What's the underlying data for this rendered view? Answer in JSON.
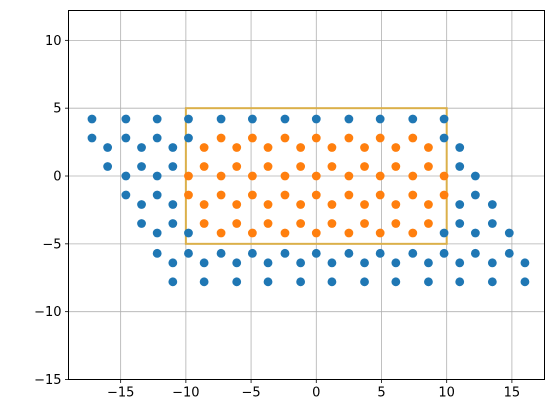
{
  "chart_data": {
    "type": "scatter",
    "xlim": [
      -19,
      17.5
    ],
    "ylim": [
      -15,
      12.2
    ],
    "xticks": [
      -15,
      -10,
      -5,
      0,
      5,
      10,
      15
    ],
    "yticks": [
      -15,
      -10,
      -5,
      0,
      5,
      10
    ],
    "xtick_labels": [
      "−15",
      "−10",
      "−5",
      "0",
      "5",
      "10",
      "15"
    ],
    "ytick_labels": [
      "−15",
      "−10",
      "−5",
      "0",
      "5",
      "10"
    ],
    "grid": true,
    "rectangle": {
      "x0": -10,
      "y0": -5,
      "x1": 10,
      "y1": 5,
      "color": "#dbb04a"
    },
    "series": [
      {
        "color": "#1f77b4",
        "points": [
          [
            -17.2,
            4.2
          ],
          [
            -14.6,
            4.2
          ],
          [
            -12.2,
            4.2
          ],
          [
            -9.8,
            4.2
          ],
          [
            -7.3,
            4.2
          ],
          [
            -4.9,
            4.2
          ],
          [
            -2.4,
            4.2
          ],
          [
            0.0,
            4.2
          ],
          [
            2.5,
            4.2
          ],
          [
            4.9,
            4.2
          ],
          [
            7.4,
            4.2
          ],
          [
            9.8,
            4.2
          ],
          [
            -17.2,
            2.8
          ],
          [
            -14.6,
            2.8
          ],
          [
            -12.2,
            2.8
          ],
          [
            -9.8,
            2.8
          ],
          [
            9.8,
            2.8
          ],
          [
            -16.0,
            2.1
          ],
          [
            -13.4,
            2.1
          ],
          [
            -11.0,
            2.1
          ],
          [
            11.0,
            2.1
          ],
          [
            -16.0,
            0.7
          ],
          [
            -13.4,
            0.7
          ],
          [
            -11.0,
            0.7
          ],
          [
            11.0,
            0.7
          ],
          [
            -14.6,
            0.0
          ],
          [
            -12.2,
            0.0
          ],
          [
            12.2,
            0.0
          ],
          [
            -14.6,
            -1.4
          ],
          [
            -12.2,
            -1.4
          ],
          [
            12.2,
            -1.4
          ],
          [
            -13.4,
            -2.1
          ],
          [
            -11.0,
            -2.1
          ],
          [
            11.0,
            -2.1
          ],
          [
            13.5,
            -2.1
          ],
          [
            -13.4,
            -3.5
          ],
          [
            -11.0,
            -3.5
          ],
          [
            11.0,
            -3.5
          ],
          [
            13.5,
            -3.5
          ],
          [
            -12.2,
            -4.2
          ],
          [
            -9.8,
            -4.2
          ],
          [
            9.8,
            -4.2
          ],
          [
            12.2,
            -4.2
          ],
          [
            14.8,
            -4.2
          ],
          [
            -12.2,
            -5.7
          ],
          [
            -9.8,
            -5.7
          ],
          [
            -7.3,
            -5.7
          ],
          [
            -4.9,
            -5.7
          ],
          [
            -2.4,
            -5.7
          ],
          [
            0.0,
            -5.7
          ],
          [
            2.5,
            -5.7
          ],
          [
            4.9,
            -5.7
          ],
          [
            7.4,
            -5.7
          ],
          [
            9.8,
            -5.7
          ],
          [
            12.2,
            -5.7
          ],
          [
            14.8,
            -5.7
          ],
          [
            -11.0,
            -6.4
          ],
          [
            -8.6,
            -6.4
          ],
          [
            -6.1,
            -6.4
          ],
          [
            -3.7,
            -6.4
          ],
          [
            -1.2,
            -6.4
          ],
          [
            1.2,
            -6.4
          ],
          [
            3.7,
            -6.4
          ],
          [
            6.1,
            -6.4
          ],
          [
            8.6,
            -6.4
          ],
          [
            11.0,
            -6.4
          ],
          [
            13.5,
            -6.4
          ],
          [
            16.0,
            -6.4
          ],
          [
            -11.0,
            -7.8
          ],
          [
            -8.6,
            -7.8
          ],
          [
            -6.1,
            -7.8
          ],
          [
            -3.7,
            -7.8
          ],
          [
            -1.2,
            -7.8
          ],
          [
            1.2,
            -7.8
          ],
          [
            3.7,
            -7.8
          ],
          [
            6.1,
            -7.8
          ],
          [
            8.6,
            -7.8
          ],
          [
            11.0,
            -7.8
          ],
          [
            13.5,
            -7.8
          ],
          [
            16.0,
            -7.8
          ]
        ]
      },
      {
        "color": "#ff7f0e",
        "points": [
          [
            -7.3,
            2.8
          ],
          [
            -4.9,
            2.8
          ],
          [
            -2.4,
            2.8
          ],
          [
            0.0,
            2.8
          ],
          [
            2.5,
            2.8
          ],
          [
            4.9,
            2.8
          ],
          [
            7.4,
            2.8
          ],
          [
            -8.6,
            2.1
          ],
          [
            -6.1,
            2.1
          ],
          [
            -3.7,
            2.1
          ],
          [
            -1.2,
            2.1
          ],
          [
            1.2,
            2.1
          ],
          [
            3.7,
            2.1
          ],
          [
            6.1,
            2.1
          ],
          [
            8.6,
            2.1
          ],
          [
            -8.6,
            0.7
          ],
          [
            -6.1,
            0.7
          ],
          [
            -3.7,
            0.7
          ],
          [
            -1.2,
            0.7
          ],
          [
            1.2,
            0.7
          ],
          [
            3.7,
            0.7
          ],
          [
            6.1,
            0.7
          ],
          [
            8.6,
            0.7
          ],
          [
            -9.8,
            0.0
          ],
          [
            -7.3,
            0.0
          ],
          [
            -4.9,
            0.0
          ],
          [
            -2.4,
            0.0
          ],
          [
            0.0,
            0.0
          ],
          [
            2.5,
            0.0
          ],
          [
            4.9,
            0.0
          ],
          [
            7.4,
            0.0
          ],
          [
            9.8,
            0.0
          ],
          [
            -9.8,
            -1.4
          ],
          [
            -7.3,
            -1.4
          ],
          [
            -4.9,
            -1.4
          ],
          [
            -2.4,
            -1.4
          ],
          [
            0.0,
            -1.4
          ],
          [
            2.5,
            -1.4
          ],
          [
            4.9,
            -1.4
          ],
          [
            7.4,
            -1.4
          ],
          [
            9.8,
            -1.4
          ],
          [
            -8.6,
            -2.1
          ],
          [
            -6.1,
            -2.1
          ],
          [
            -3.7,
            -2.1
          ],
          [
            -1.2,
            -2.1
          ],
          [
            1.2,
            -2.1
          ],
          [
            3.7,
            -2.1
          ],
          [
            6.1,
            -2.1
          ],
          [
            8.6,
            -2.1
          ],
          [
            -8.6,
            -3.5
          ],
          [
            -6.1,
            -3.5
          ],
          [
            -3.7,
            -3.5
          ],
          [
            -1.2,
            -3.5
          ],
          [
            1.2,
            -3.5
          ],
          [
            3.7,
            -3.5
          ],
          [
            6.1,
            -3.5
          ],
          [
            8.6,
            -3.5
          ],
          [
            -7.3,
            -4.2
          ],
          [
            -4.9,
            -4.2
          ],
          [
            -2.4,
            -4.2
          ],
          [
            0.0,
            -4.2
          ],
          [
            2.5,
            -4.2
          ],
          [
            4.9,
            -4.2
          ],
          [
            7.4,
            -4.2
          ]
        ]
      }
    ]
  }
}
